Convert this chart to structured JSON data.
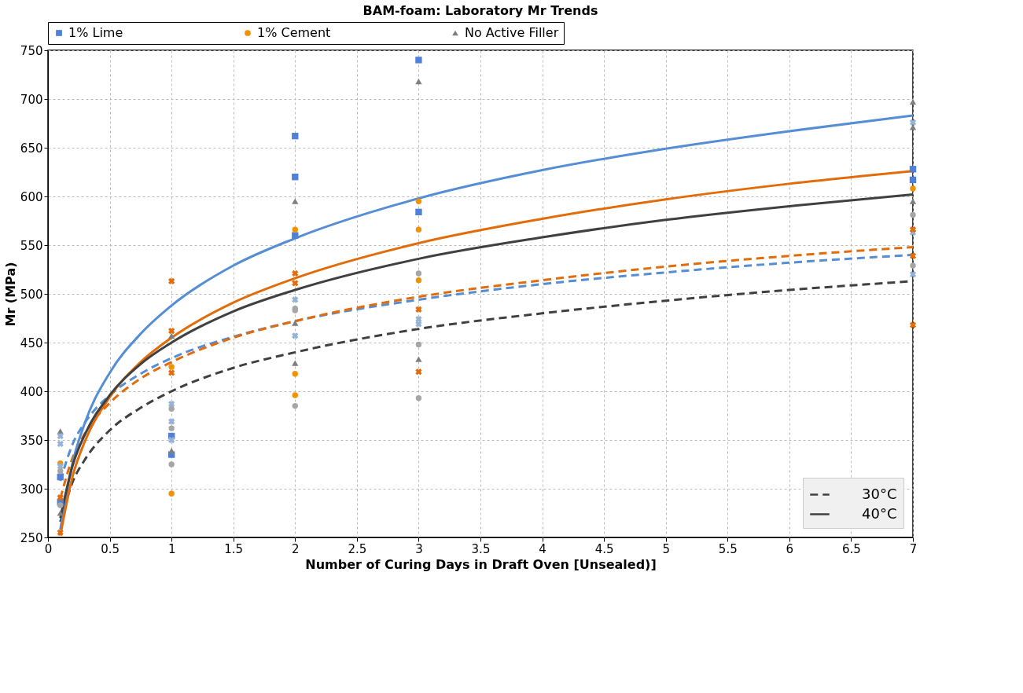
{
  "chart_data": {
    "type": "scatter",
    "title": "BAM-foam: Laboratory Mr Trends",
    "xlabel": "Number of Curing Days in Draft Oven  [Unsealed)]",
    "ylabel": "Mr (MPa)",
    "xlim": [
      0,
      7
    ],
    "xticks": [
      0,
      0.5,
      1,
      1.5,
      2,
      2.5,
      3,
      3.5,
      4,
      4.5,
      5,
      5.5,
      6,
      6.5,
      7
    ],
    "ylim": [
      250,
      750
    ],
    "yticks": [
      250,
      300,
      350,
      400,
      450,
      500,
      550,
      600,
      650,
      700,
      750
    ],
    "grid": true,
    "legend": "top",
    "series": [
      {
        "name": "1% Lime",
        "color": "#4f81d9",
        "marker": "square",
        "x": [
          0.1,
          0.1,
          1,
          1,
          2,
          2,
          2,
          3,
          3,
          7,
          7
        ],
        "values": [
          312,
          286,
          354,
          335,
          662,
          620,
          560,
          740,
          584,
          628,
          617
        ]
      },
      {
        "name": "1% Cement",
        "color": "#f39200",
        "marker": "circle",
        "x": [
          0.1,
          1,
          1,
          2,
          2,
          2,
          3,
          3,
          3,
          7
        ],
        "values": [
          326,
          425,
          295,
          566,
          418,
          396,
          595,
          566,
          514,
          608
        ]
      },
      {
        "name": "No Active Filler",
        "color": "#7f7f7f",
        "marker": "triangle",
        "x": [
          0.1,
          0.1,
          1,
          1,
          2,
          2,
          2,
          3,
          3,
          7,
          7,
          7
        ],
        "values": [
          359,
          275,
          457,
          339,
          595,
          470,
          429,
          718,
          433,
          697,
          671,
          595
        ]
      },
      {
        "color": "#95b3d7",
        "marker": "cross",
        "x": [
          0.1,
          0.1,
          0.1,
          1,
          1,
          1,
          2,
          2,
          3,
          3,
          7,
          7,
          7
        ],
        "values": [
          354,
          346,
          323,
          387,
          369,
          350,
          494,
          457,
          474,
          469,
          676,
          563,
          520
        ]
      },
      {
        "color": "#e46c0a",
        "marker": "cross",
        "x": [
          0.1,
          0.1,
          1,
          1,
          1,
          2,
          2,
          3,
          3,
          7,
          7,
          7
        ],
        "values": [
          291,
          255,
          513,
          462,
          419,
          521,
          511,
          484,
          420,
          566,
          539,
          468
        ]
      },
      {
        "color": "#a6a6a6",
        "marker": "circle",
        "x": [
          0.1,
          0.1,
          1,
          1,
          1,
          2,
          2,
          2,
          3,
          3,
          3,
          7,
          7
        ],
        "values": [
          318,
          283,
          382,
          362,
          325,
          485,
          483,
          385,
          521,
          448,
          393,
          581,
          529
        ]
      },
      {
        "type": "line",
        "color": "#558ed5",
        "line_style": "dashed",
        "x": [
          0.1,
          0.2,
          0.3,
          0.5,
          0.75,
          1,
          1.5,
          2,
          3,
          4,
          5,
          6,
          7
        ],
        "values": [
          308,
          346,
          368,
          396,
          418,
          434,
          456,
          472,
          494,
          510,
          522,
          532,
          540
        ]
      },
      {
        "type": "line",
        "color": "#e36c0a",
        "line_style": "dashed",
        "x": [
          0.1,
          0.2,
          0.3,
          0.5,
          0.75,
          1,
          1.5,
          2,
          3,
          4,
          5,
          6,
          7
        ],
        "values": [
          290,
          332,
          357,
          388,
          413,
          430,
          455,
          472,
          497,
          514,
          528,
          539,
          548
        ]
      },
      {
        "type": "line",
        "name": "30°C",
        "color": "#404040",
        "line_style": "dashed",
        "x": [
          0.1,
          0.2,
          0.3,
          0.5,
          0.75,
          1,
          1.5,
          2,
          3,
          4,
          5,
          6,
          7
        ],
        "values": [
          266,
          307,
          330,
          360,
          383,
          400,
          424,
          440,
          464,
          480,
          493,
          504,
          513
        ]
      },
      {
        "type": "line",
        "color": "#558ed5",
        "line_style": "solid",
        "x": [
          0.1,
          0.2,
          0.3,
          0.5,
          0.75,
          1,
          1.5,
          2,
          3,
          4,
          5,
          6,
          7
        ],
        "values": [
          258,
          327,
          368,
          419,
          459,
          488,
          529,
          557,
          598,
          627,
          649,
          667,
          683
        ]
      },
      {
        "type": "line",
        "color": "#e36c0a",
        "line_style": "solid",
        "x": [
          0.1,
          0.2,
          0.3,
          0.5,
          0.75,
          1,
          1.5,
          2,
          3,
          4,
          5,
          6,
          7
        ],
        "values": [
          252,
          313,
          349,
          394,
          430,
          455,
          491,
          516,
          552,
          577,
          597,
          613,
          626
        ]
      },
      {
        "type": "line",
        "name": "40°C",
        "color": "#404040",
        "line_style": "solid",
        "x": [
          0.1,
          0.2,
          0.3,
          0.5,
          0.75,
          1,
          1.5,
          2,
          3,
          4,
          5,
          6,
          7
        ],
        "values": [
          270,
          324,
          356,
          396,
          428,
          450,
          482,
          504,
          536,
          558,
          576,
          590,
          602
        ]
      }
    ]
  }
}
